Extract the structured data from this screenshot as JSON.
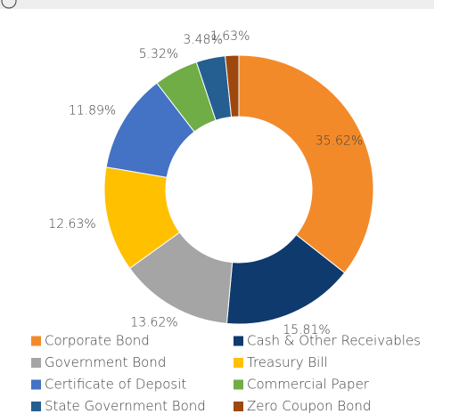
{
  "chart_data": {
    "type": "donut",
    "categories": [
      "Corporate Bond",
      "Cash & Other Receivables",
      "Government Bond",
      "Treasury Bill",
      "Certificate of Deposit",
      "Commercial Paper",
      "State Government Bond",
      "Zero Coupon Bond"
    ],
    "values": [
      35.62,
      15.81,
      13.62,
      12.63,
      11.89,
      5.32,
      3.48,
      1.63
    ],
    "value_labels": [
      "35.62%",
      "15.81%",
      "13.62%",
      "12.63%",
      "11.89%",
      "5.32%",
      "3.48%",
      "1.63%"
    ],
    "colors": [
      "#f28a2a",
      "#0e3a6e",
      "#a5a5a5",
      "#ffc000",
      "#4472c4",
      "#70ad47",
      "#255e91",
      "#9e480e"
    ],
    "legend": "bottom"
  }
}
